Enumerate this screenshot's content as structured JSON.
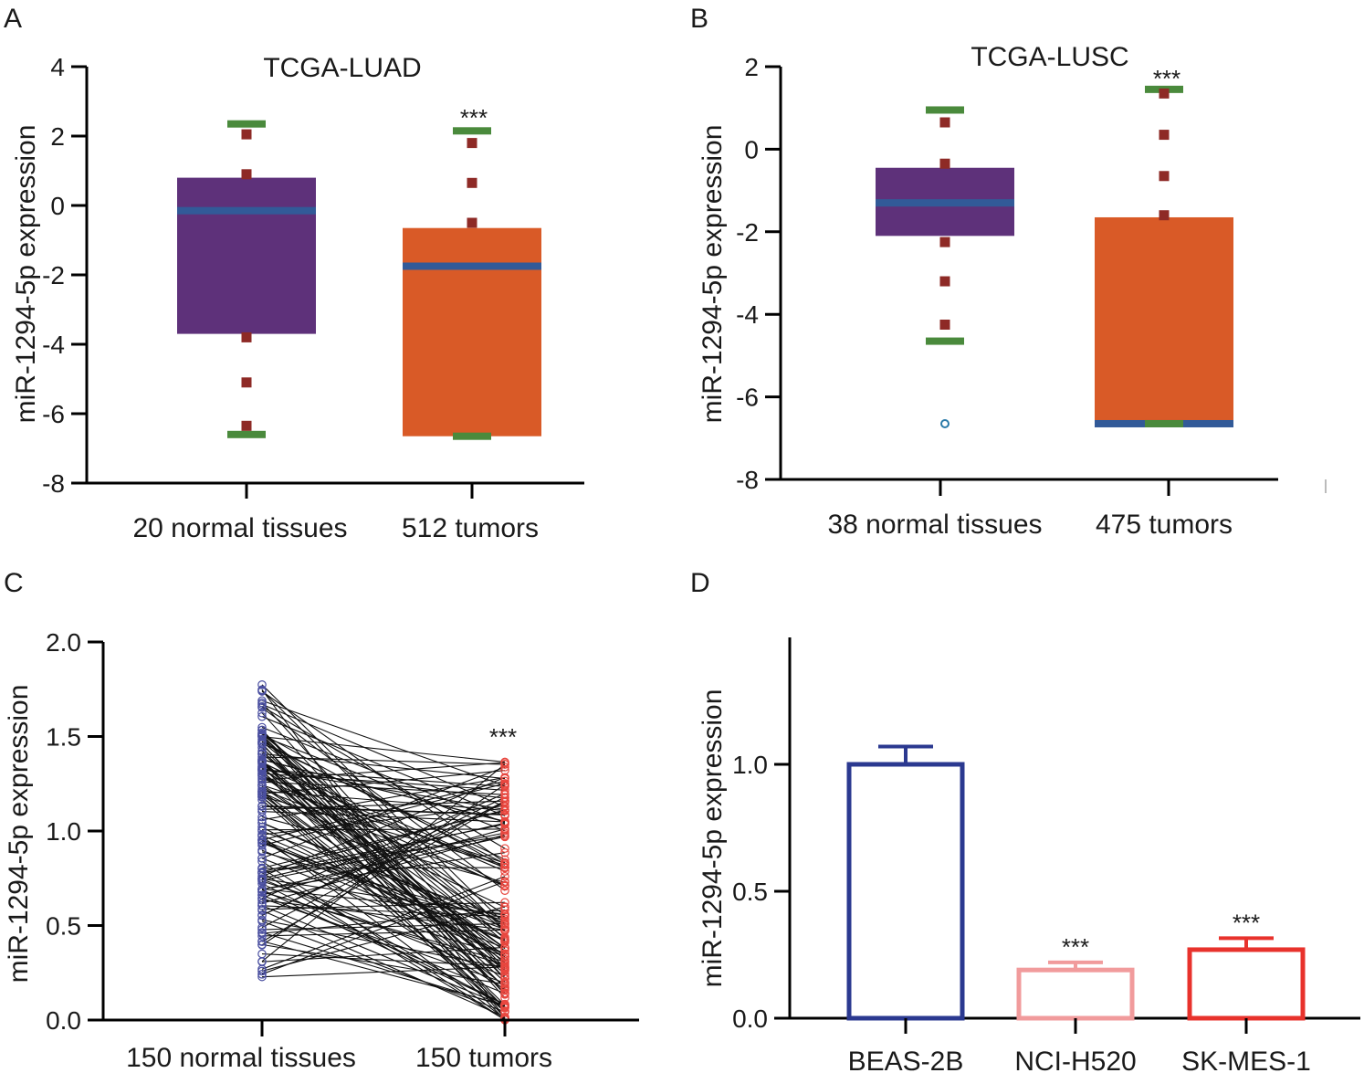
{
  "figure": {
    "panels": [
      "A",
      "B",
      "C",
      "D"
    ]
  },
  "chart_data": [
    {
      "panel": "A",
      "type": "box",
      "title": "TCGA-LUAD",
      "ylabel": "miR-1294-5p expression",
      "ylim": [
        -8,
        4
      ],
      "yticks": [
        4,
        2,
        0,
        -2,
        -4,
        -6,
        -8
      ],
      "categories": [
        "20 normal tissues",
        "512 tumors"
      ],
      "colors": [
        "#5e317a",
        "#d95a27"
      ],
      "boxes": [
        {
          "label": "20 normal tissues",
          "q1": -3.7,
          "median": -0.15,
          "q3": 0.8,
          "whisker_low": -6.6,
          "whisker_high": 2.35,
          "points": [
            2.05,
            0.9,
            -3.8,
            -5.1,
            -6.35
          ]
        },
        {
          "label": "512 tumors",
          "q1": -6.65,
          "median": -1.75,
          "q3": -0.65,
          "whisker_low": -6.65,
          "whisker_high": 2.15,
          "points": [
            1.8,
            0.65,
            -0.5
          ],
          "significance": "***"
        }
      ]
    },
    {
      "panel": "B",
      "type": "box",
      "title": "TCGA-LUSC",
      "ylabel": "miR-1294-5p expression",
      "ylim": [
        -8,
        2
      ],
      "yticks": [
        2,
        0,
        -2,
        -4,
        -6,
        -8
      ],
      "categories": [
        "38 normal tissues",
        "475 tumors"
      ],
      "colors": [
        "#5e317a",
        "#d95a27"
      ],
      "boxes": [
        {
          "label": "38 normal tissues",
          "q1": -2.1,
          "median": -1.3,
          "q3": -0.45,
          "whisker_low": -4.65,
          "whisker_high": 0.95,
          "points": [
            0.65,
            -0.35,
            -2.25,
            -3.2,
            -4.25
          ],
          "outliers": [
            -6.65
          ]
        },
        {
          "label": "475 tumors",
          "q1": -6.65,
          "median": -6.65,
          "q3": -1.65,
          "whisker_low": -6.65,
          "whisker_high": 1.45,
          "points": [
            1.35,
            0.35,
            -0.65,
            -1.6
          ],
          "significance": "***"
        }
      ]
    },
    {
      "panel": "C",
      "type": "paired-scatter",
      "ylabel": "miR-1294-5p expression",
      "ylim": [
        0,
        2.0
      ],
      "yticks": [
        "2.0",
        "1.5",
        "1.0",
        "0.5",
        "0.0"
      ],
      "categories": [
        "150 normal tissues",
        "150 tumors"
      ],
      "n_pairs": 150,
      "normal_range": [
        0.2,
        1.78
      ],
      "tumor_range": [
        0.0,
        1.37
      ],
      "normal_color": "#4a4fa0",
      "tumor_color": "#e8473f",
      "line_color": "#111111",
      "significance": "***"
    },
    {
      "panel": "D",
      "type": "bar",
      "ylabel": "miR-1294-5p expression",
      "ylim": [
        0,
        1.5
      ],
      "yticks": [
        "1.0",
        "0.5",
        "0.0"
      ],
      "categories": [
        "BEAS-2B",
        "NCI-H520",
        "SK-MES-1"
      ],
      "values": [
        1.0,
        0.19,
        0.27
      ],
      "errors": [
        0.07,
        0.03,
        0.045
      ],
      "colors": [
        "#2b3990",
        "#f19b9c",
        "#e8322c"
      ],
      "significance": [
        "",
        "***",
        "***"
      ]
    }
  ]
}
